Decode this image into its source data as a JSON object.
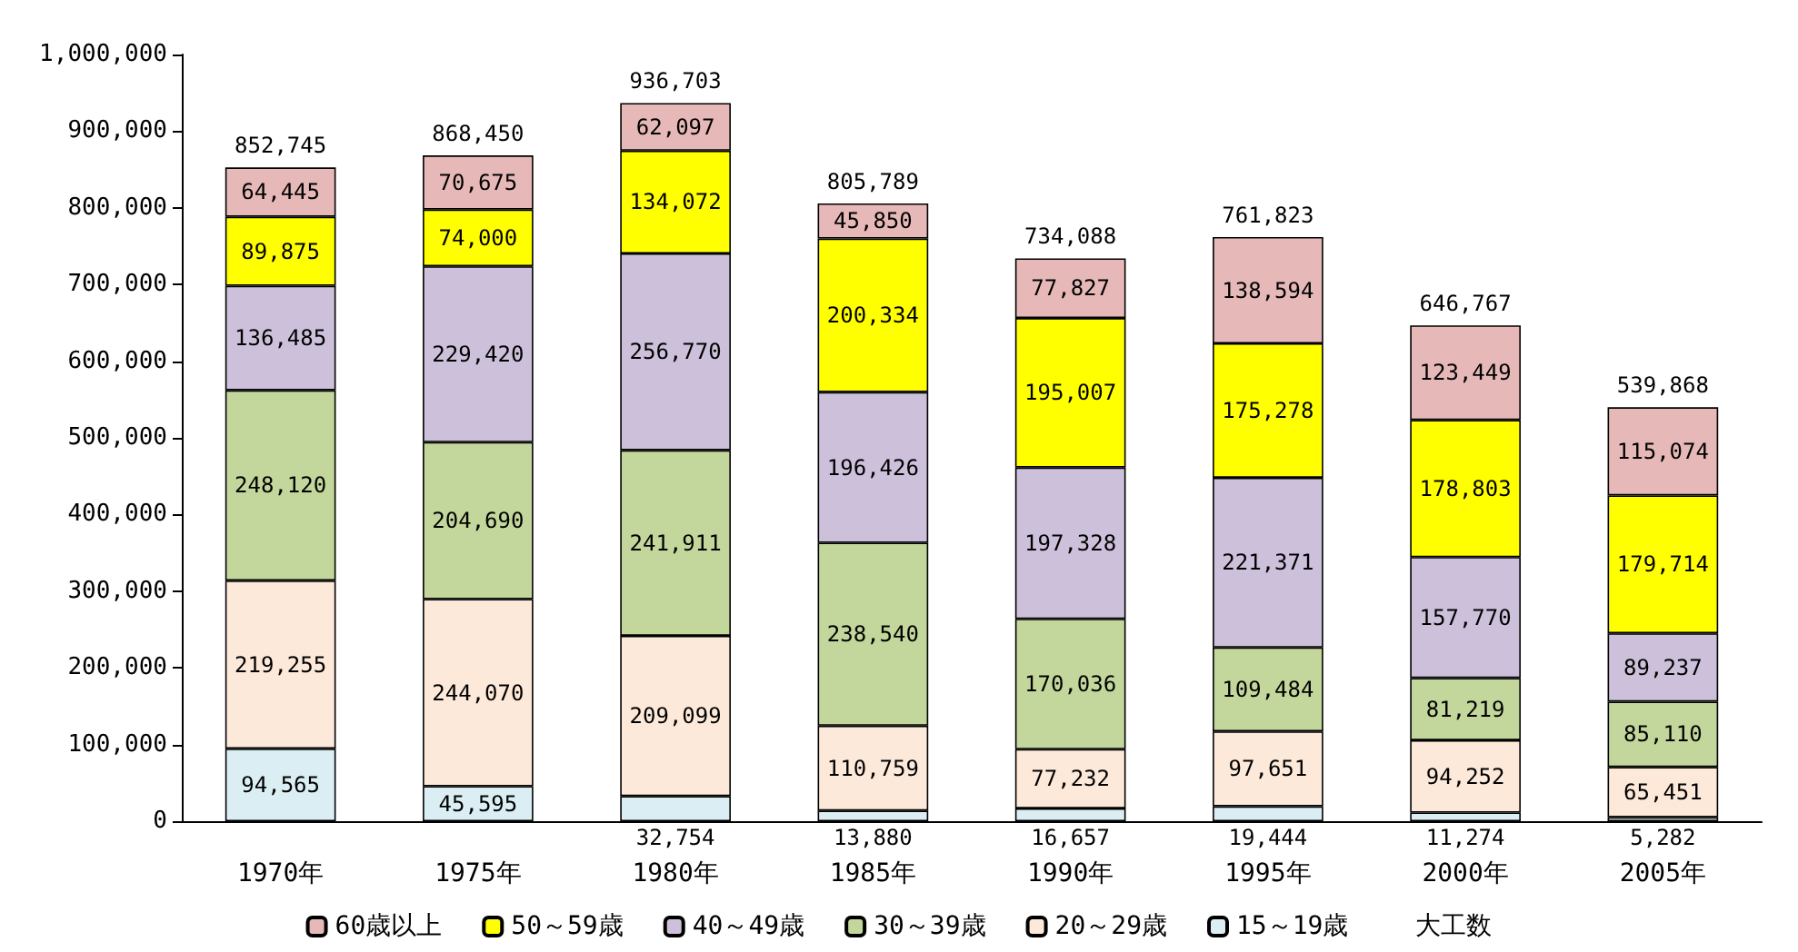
{
  "chart_data": {
    "type": "bar",
    "stacked": true,
    "categories": [
      "1970年",
      "1975年",
      "1980年",
      "1985年",
      "1990年",
      "1995年",
      "2000年",
      "2005年"
    ],
    "series": [
      {
        "name": "15～19歳",
        "color": "#daeef3",
        "values": [
          94565,
          45595,
          32754,
          13880,
          16657,
          19444,
          11274,
          5282
        ],
        "value_labels": [
          "94,565",
          "45,595",
          "32,754",
          "13,880",
          "16,657",
          "19,444",
          "11,274",
          "5,282"
        ]
      },
      {
        "name": "20～29歳",
        "color": "#fde9d9",
        "values": [
          219255,
          244070,
          209099,
          110759,
          77232,
          97651,
          94252,
          65451
        ],
        "value_labels": [
          "219,255",
          "244,070",
          "209,099",
          "110,759",
          "77,232",
          "97,651",
          "94,252",
          "65,451"
        ]
      },
      {
        "name": "30～39歳",
        "color": "#c3d69b",
        "values": [
          248120,
          204690,
          241911,
          238540,
          170036,
          109484,
          81219,
          85110
        ],
        "value_labels": [
          "248,120",
          "204,690",
          "241,911",
          "238,540",
          "170,036",
          "109,484",
          "81,219",
          "85,110"
        ]
      },
      {
        "name": "40～49歳",
        "color": "#ccc0da",
        "values": [
          136485,
          229420,
          256770,
          196426,
          197328,
          221371,
          157770,
          89237
        ],
        "value_labels": [
          "136,485",
          "229,420",
          "256,770",
          "196,426",
          "197,328",
          "221,371",
          "157,770",
          "89,237"
        ]
      },
      {
        "name": "50～59歳",
        "color": "#ffff00",
        "values": [
          89875,
          74000,
          134072,
          200334,
          195007,
          175278,
          178803,
          179714
        ],
        "value_labels": [
          "89,875",
          "74,000",
          "134,072",
          "200,334",
          "195,007",
          "175,278",
          "178,803",
          "179,714"
        ]
      },
      {
        "name": "60歳以上",
        "color": "#e6b9b8",
        "values": [
          64445,
          70675,
          62097,
          45850,
          77827,
          138594,
          123449,
          115074
        ],
        "value_labels": [
          "64,445",
          "70,675",
          "62,097",
          "45,850",
          "77,827",
          "138,594",
          "123,449",
          "115,074"
        ]
      }
    ],
    "totals": [
      "852,745",
      "868,450",
      "936,703",
      "805,789",
      "734,088",
      "761,823",
      "646,767",
      "539,868"
    ],
    "legend_title": "大工数",
    "ylim": [
      0,
      1000000
    ],
    "yticks": [
      {
        "value": 0,
        "label": "0"
      },
      {
        "value": 100000,
        "label": "100,000"
      },
      {
        "value": 200000,
        "label": "200,000"
      },
      {
        "value": 300000,
        "label": "300,000"
      },
      {
        "value": 400000,
        "label": "400,000"
      },
      {
        "value": 500000,
        "label": "500,000"
      },
      {
        "value": 600000,
        "label": "600,000"
      },
      {
        "value": 700000,
        "label": "700,000"
      },
      {
        "value": 800000,
        "label": "800,000"
      },
      {
        "value": 900000,
        "label": "900,000"
      },
      {
        "value": 1000000,
        "label": "1,000,000"
      }
    ],
    "grid": false,
    "legend": "bottom"
  }
}
